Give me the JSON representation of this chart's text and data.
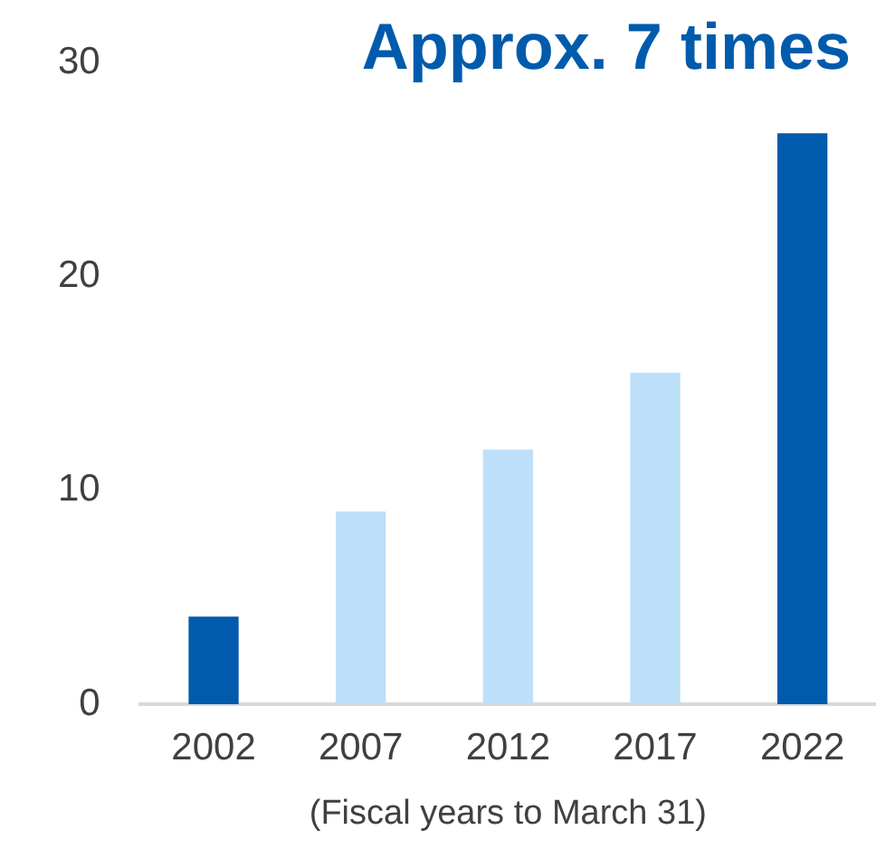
{
  "chart_data": {
    "type": "bar",
    "categories": [
      "2002",
      "2007",
      "2012",
      "2017",
      "2022"
    ],
    "values": [
      4.1,
      9.0,
      11.9,
      15.5,
      26.7
    ],
    "colors": [
      "#005bac",
      "#bddff9",
      "#bddff9",
      "#bddff9",
      "#005bac"
    ],
    "xlabel": "(Fiscal years to March 31)",
    "annotations": [
      "Approx. 7 times"
    ],
    "ylim": [
      0,
      30
    ],
    "yticks": [
      0,
      10,
      20,
      30
    ],
    "grid": false,
    "legend": false
  }
}
